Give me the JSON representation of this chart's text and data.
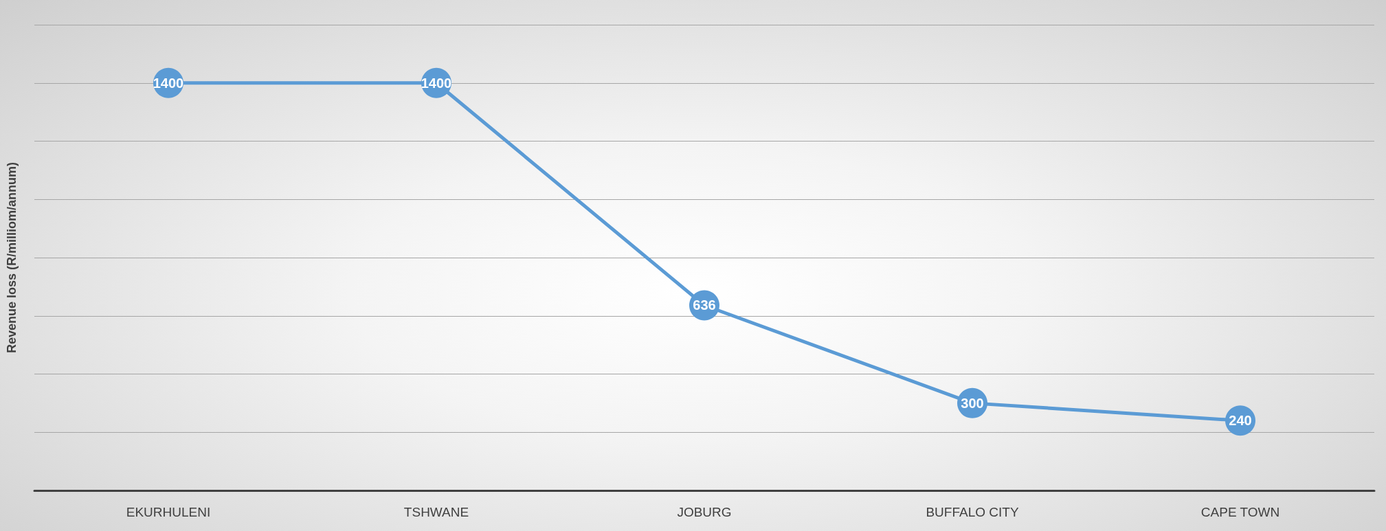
{
  "chart_data": {
    "type": "line",
    "ylabel": "Revenue loss (R/milliom/annum)",
    "categories": [
      "EKURHULENI",
      "TSHWANE",
      "JOBURG",
      "BUFFALO CITY",
      "CAPE TOWN"
    ],
    "series": [
      {
        "color": "#5b9bd5",
        "values": [
          1400,
          1400,
          636,
          300,
          240
        ]
      }
    ],
    "ylim": [
      0,
      1600
    ],
    "yticks": [
      {
        "value": 0,
        "label": null
      },
      {
        "value": 200,
        "label": null
      },
      {
        "value": 400,
        "label": null
      },
      {
        "value": 600,
        "label": null
      },
      {
        "value": 800,
        "label": null
      },
      {
        "value": 1000,
        "label": null
      },
      {
        "value": 1200,
        "label": null
      },
      {
        "value": 1400,
        "label": null
      },
      {
        "value": 1600,
        "label": null
      }
    ],
    "tick_labels": "x",
    "grid": "y",
    "data_labels": true,
    "marker": "circle",
    "line_style": "solid"
  }
}
